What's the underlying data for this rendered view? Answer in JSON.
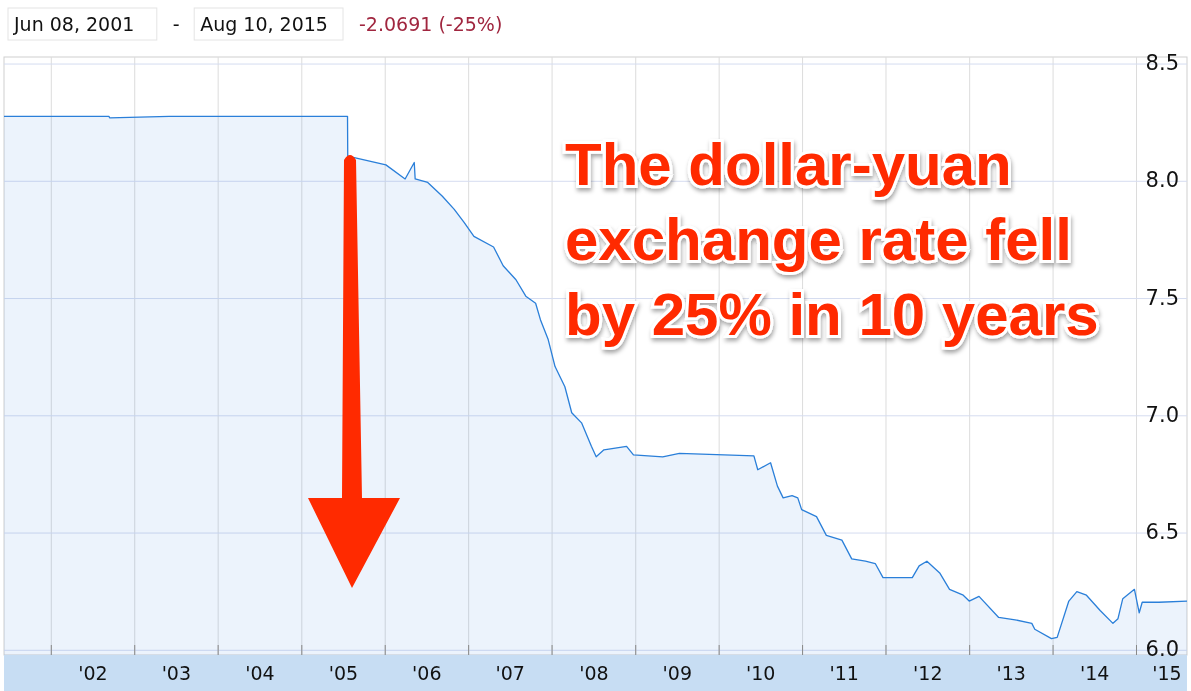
{
  "chart_data": {
    "type": "area",
    "annotations": [
      "Jun 08, 2001",
      "-",
      "Aug 10, 2015",
      "-2.0691 (-25%)",
      "The dollar-yuan exchange rate fell by 25% in 10 years"
    ],
    "x": [
      "2001-06-08",
      "2002-09-10",
      "2002-09-14",
      "2003-06-01",
      "2004-06-01",
      "2005-07-20",
      "2005-07-21",
      "2006-01-04",
      "2006-03-29",
      "2006-05-08",
      "2006-05-12",
      "2006-07-06",
      "2006-09-08",
      "2006-10-30",
      "2006-12-12",
      "2007-01-24",
      "2007-04-20",
      "2007-06-01",
      "2007-07-27",
      "2007-09-08",
      "2007-10-21",
      "2007-11-11",
      "2007-12-15",
      "2008-01-14",
      "2008-02-26",
      "2008-03-27",
      "2008-05-09",
      "2008-06-21",
      "2008-07-12",
      "2008-08-15",
      "2008-11-22",
      "2008-12-22",
      "2009-04-29",
      "2009-07-11",
      "2010-06-02",
      "2010-06-19",
      "2010-08-14",
      "2010-09-13",
      "2010-10-08",
      "2010-11-16",
      "2010-12-11",
      "2010-12-28",
      "2011-03-03",
      "2011-04-15",
      "2011-06-22",
      "2011-08-04",
      "2011-10-03",
      "2011-11-15",
      "2011-12-19",
      "2012-03-05",
      "2012-04-25",
      "2012-05-25",
      "2012-06-28",
      "2012-08-23",
      "2012-10-05",
      "2012-12-04",
      "2012-12-30",
      "2013-02-11",
      "2013-05-08",
      "2013-07-19",
      "2013-09-30",
      "2013-10-13",
      "2013-12-25",
      "2014-01-19",
      "2014-03-11",
      "2014-04-15",
      "2014-05-27",
      "2014-07-26",
      "2014-09-20",
      "2014-10-12",
      "2014-11-02",
      "2014-12-23",
      "2015-01-13",
      "2015-01-26",
      "2015-04-09",
      "2015-08-10"
    ],
    "series": [
      {
        "color": "#2a7fd9",
        "values": [
          8.277,
          8.277,
          8.27,
          8.277,
          8.277,
          8.277,
          8.107,
          8.07,
          8.01,
          8.08,
          8.01,
          7.995,
          7.936,
          7.88,
          7.825,
          7.765,
          7.72,
          7.64,
          7.58,
          7.51,
          7.48,
          7.41,
          7.325,
          7.21,
          7.124,
          7.013,
          6.97,
          6.87,
          6.825,
          6.855,
          6.87,
          6.833,
          6.825,
          6.84,
          6.829,
          6.77,
          6.8,
          6.7,
          6.65,
          6.66,
          6.65,
          6.6,
          6.57,
          6.49,
          6.47,
          6.39,
          6.38,
          6.37,
          6.31,
          6.31,
          6.31,
          6.36,
          6.38,
          6.33,
          6.26,
          6.235,
          6.21,
          6.23,
          6.14,
          6.13,
          6.115,
          6.09,
          6.05,
          6.055,
          6.21,
          6.25,
          6.235,
          6.17,
          6.115,
          6.135,
          6.22,
          6.26,
          6.16,
          6.205,
          6.205,
          6.21
        ]
      }
    ],
    "xlim": [
      "2001-06-08",
      "2015-08-10"
    ],
    "xticks": [
      {
        "value": "2002-01-01",
        "label": null
      },
      {
        "value": "2003-01-01",
        "label": null
      },
      {
        "value": "2004-01-01",
        "label": null
      },
      {
        "value": "2005-01-01",
        "label": null
      },
      {
        "value": "2006-01-01",
        "label": null
      },
      {
        "value": "2007-01-01",
        "label": null
      },
      {
        "value": "2008-01-01",
        "label": null
      },
      {
        "value": "2009-01-01",
        "label": null
      },
      {
        "value": "2010-01-01",
        "label": null
      },
      {
        "value": "2011-01-01",
        "label": null
      },
      {
        "value": "2012-01-01",
        "label": null
      },
      {
        "value": "2013-01-01",
        "label": null
      },
      {
        "value": "2014-01-01",
        "label": null
      },
      {
        "value": "2015-01-01",
        "label": null
      },
      {
        "value": "2002-07-02",
        "label": "'02"
      },
      {
        "value": "2003-07-02",
        "label": "'03"
      },
      {
        "value": "2004-07-02",
        "label": "'04"
      },
      {
        "value": "2005-07-02",
        "label": "'05"
      },
      {
        "value": "2006-07-02",
        "label": "'06"
      },
      {
        "value": "2007-07-02",
        "label": "'07"
      },
      {
        "value": "2008-07-02",
        "label": "'08"
      },
      {
        "value": "2009-07-02",
        "label": "'09"
      },
      {
        "value": "2010-07-02",
        "label": "'10"
      },
      {
        "value": "2011-07-02",
        "label": "'11"
      },
      {
        "value": "2012-07-02",
        "label": "'12"
      },
      {
        "value": "2013-07-02",
        "label": "'13"
      },
      {
        "value": "2014-07-02",
        "label": "'14"
      },
      {
        "value": "2015-07-02",
        "label": "'15"
      }
    ],
    "ylim": [
      5.98,
      8.53
    ],
    "yticks": [
      {
        "value": 6,
        "label": "6.0"
      },
      6.5,
      {
        "value": 7,
        "label": "7.0"
      },
      7.5,
      {
        "value": 8,
        "label": "8.0"
      },
      8.5
    ],
    "grid": true
  }
}
